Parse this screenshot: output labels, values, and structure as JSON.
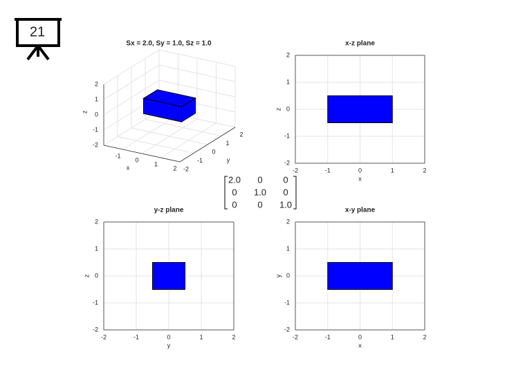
{
  "slide_number": "21",
  "chart_data": [
    {
      "type": "box3d",
      "title": "Sx = 2.0, Sy = 1.0, Sz = 1.0",
      "xlabel": "x",
      "ylabel": "y",
      "zlabel": "z",
      "xlim": [
        -2,
        2
      ],
      "ylim": [
        -2,
        2
      ],
      "zlim": [
        -2,
        2
      ],
      "xticks": [
        -1,
        0,
        1,
        2
      ],
      "yticks": [
        -2,
        -1,
        0,
        1,
        2
      ],
      "zticks": [
        -2,
        -1,
        0,
        1,
        2
      ],
      "box": {
        "x": [
          -1,
          1
        ],
        "y": [
          -0.5,
          0.5
        ],
        "z": [
          -0.5,
          0.5
        ]
      },
      "color": "#0000ff",
      "grid": true
    },
    {
      "type": "rect",
      "title": "x-z plane",
      "xlabel": "x",
      "ylabel": "z",
      "xlim": [
        -2,
        2
      ],
      "ylim": [
        -2,
        2
      ],
      "xticks": [
        -2,
        -1,
        0,
        1,
        2
      ],
      "yticks": [
        -2,
        -1,
        0,
        1,
        2
      ],
      "rect": {
        "x": [
          -1,
          1
        ],
        "y": [
          -0.5,
          0.5
        ]
      },
      "color": "#0000ff",
      "grid": true
    },
    {
      "type": "rect",
      "title": "y-z plane",
      "xlabel": "y",
      "ylabel": "z",
      "xlim": [
        -2,
        2
      ],
      "ylim": [
        -2,
        2
      ],
      "xticks": [
        -2,
        -1,
        0,
        1,
        2
      ],
      "yticks": [
        -2,
        -1,
        0,
        1,
        2
      ],
      "rect": {
        "x": [
          -0.5,
          0.5
        ],
        "y": [
          -0.5,
          0.5
        ]
      },
      "color": "#0000ff",
      "grid": true
    },
    {
      "type": "rect",
      "title": "x-y plane",
      "xlabel": "x",
      "ylabel": "y",
      "xlim": [
        -2,
        2
      ],
      "ylim": [
        -2,
        2
      ],
      "xticks": [
        -2,
        -1,
        0,
        1,
        2
      ],
      "yticks": [
        -2,
        -1,
        0,
        1,
        2
      ],
      "rect": {
        "x": [
          -1,
          1
        ],
        "y": [
          -0.5,
          0.5
        ]
      },
      "color": "#0000ff",
      "grid": true
    }
  ],
  "matrix": {
    "rows": [
      [
        "2.0",
        "0",
        "0"
      ],
      [
        "0",
        "1.0",
        "0"
      ],
      [
        "0",
        "0",
        "1.0"
      ]
    ],
    "highlight": [
      0,
      0
    ],
    "highlight_color": "#dd0000"
  }
}
